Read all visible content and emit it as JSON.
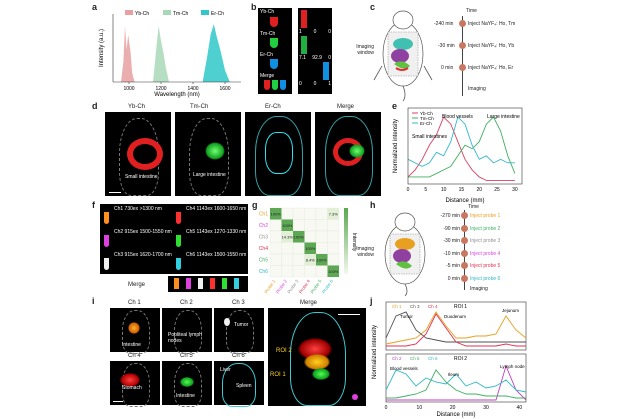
{
  "panels": {
    "a": {
      "label": "a",
      "chart_data": {
        "type": "area",
        "series": [
          {
            "name": "Yb-Ch",
            "color": "#e8a0a0",
            "x": [
              950,
              965,
              975,
              985,
              995,
              1010,
              1020,
              1035
            ],
            "y": [
              0.0,
              0.35,
              0.95,
              0.55,
              0.8,
              0.5,
              0.15,
              0.0
            ]
          },
          {
            "name": "Tm-Ch",
            "color": "#a8d8b8",
            "x": [
              1150,
              1170,
              1185,
              1200,
              1215,
              1230,
              1250
            ],
            "y": [
              0.0,
              0.55,
              0.95,
              0.7,
              0.5,
              0.25,
              0.0
            ]
          },
          {
            "name": "Er-Ch",
            "color": "#30c8c8",
            "x": [
              1460,
              1490,
              1510,
              1530,
              1550,
              1570,
              1600,
              1630
            ],
            "y": [
              0.0,
              0.45,
              0.8,
              0.98,
              0.75,
              0.55,
              0.2,
              0.0
            ]
          }
        ],
        "xlabel": "Wavelength (nm)",
        "ylabel": "Intensity (a.u.)",
        "xticks": [
          "1000",
          "1200",
          "1400",
          "1600"
        ],
        "xlim": [
          900,
          1700
        ],
        "ylim": [
          0,
          1.05
        ]
      }
    },
    "b": {
      "label": "b",
      "left_labels": [
        "Yb-Ch",
        "Tm-Ch",
        "Er-Ch",
        "Merge"
      ],
      "right_values": [
        [
          "1",
          "0",
          "0"
        ],
        [
          "7.1",
          "92.9",
          "0"
        ],
        [
          "0",
          "0",
          "1"
        ]
      ]
    },
    "c": {
      "label": "c",
      "window": "Imaging window",
      "time_header": "Time",
      "steps": [
        {
          "time": "-240 min",
          "text": "Inject NaYF₄: Ho, Tm"
        },
        {
          "time": "-30 min",
          "text": "Inject NaYF₄: Ho, Yb"
        },
        {
          "time": "0 min",
          "text": "Inject NaYF₄: Ho, Er"
        }
      ],
      "end": "Imaging"
    },
    "d": {
      "label": "d",
      "titles": [
        "Yb-Ch",
        "Tm-Ch",
        "Er-Ch",
        "Merge"
      ],
      "captions": [
        "Small intestine",
        "Large intestine"
      ]
    },
    "e": {
      "label": "e",
      "chart_data": {
        "type": "line",
        "xlabel": "Distance (mm)",
        "ylabel": "Normalized intensity",
        "xticks": [
          "0",
          "5",
          "10",
          "15",
          "20",
          "25",
          "30"
        ],
        "xlim": [
          0,
          32
        ],
        "ylim": [
          0,
          1.05
        ],
        "series": [
          {
            "name": "Yb-Ch",
            "color": "#d84060",
            "x": [
              0,
              2,
              4,
              6,
              8,
              10,
              12,
              14,
              16,
              18,
              20,
              22,
              24,
              26,
              28,
              30
            ],
            "y": [
              0.1,
              0.2,
              0.35,
              0.55,
              0.7,
              0.95,
              0.85,
              0.6,
              0.35,
              0.2,
              0.1,
              0.05,
              0.05,
              0.05,
              0.05,
              0.05
            ]
          },
          {
            "name": "Tm-Ch",
            "color": "#40b060",
            "x": [
              0,
              2,
              4,
              6,
              8,
              10,
              12,
              14,
              16,
              18,
              20,
              22,
              24,
              26,
              28,
              30
            ],
            "y": [
              0.1,
              0.1,
              0.1,
              0.1,
              0.15,
              0.2,
              0.25,
              0.4,
              0.55,
              0.5,
              0.6,
              0.85,
              0.95,
              0.75,
              0.4,
              0.15
            ]
          },
          {
            "name": "Er-Ch",
            "color": "#30b8c8",
            "x": [
              0,
              2,
              4,
              6,
              8,
              10,
              12,
              14,
              16,
              18,
              20,
              22,
              24,
              26,
              28,
              30
            ],
            "y": [
              0.35,
              0.3,
              0.25,
              0.3,
              0.45,
              0.4,
              0.6,
              0.95,
              0.85,
              0.55,
              0.35,
              0.4,
              0.3,
              0.35,
              0.3,
              0.3
            ]
          }
        ],
        "annotations": [
          "Blood vessels",
          "Large intestine",
          "Small intestines"
        ]
      }
    },
    "f": {
      "label": "f",
      "rows": [
        [
          "Ch1 730ex >1300 nm",
          "Ch4 1143ex 1600-1650 nm"
        ],
        [
          "Ch2 915ex 1500-1550 nm",
          "Ch5 1143ex 1270-1330 nm"
        ],
        [
          "Ch3 915ex 1620-1700 nm",
          "Ch6 1143ex 1500-1550 nm"
        ]
      ],
      "merge": "Merge"
    },
    "g": {
      "label": "g",
      "rows": [
        "Ch1",
        "Ch2",
        "Ch3",
        "Ch4",
        "Ch5",
        "Ch6"
      ],
      "cols": [
        "Probe 1",
        "Probe 2",
        "Probe 3",
        "Probe 4",
        "Probe 5",
        "Probe 6"
      ],
      "cells": [
        {
          "r": 0,
          "c": 0,
          "v": "100%"
        },
        {
          "r": 0,
          "c": 5,
          "v": "7.3%"
        },
        {
          "r": 1,
          "c": 1,
          "v": "100%"
        },
        {
          "r": 2,
          "c": 1,
          "v": "14.3%"
        },
        {
          "r": 2,
          "c": 2,
          "v": "100%"
        },
        {
          "r": 3,
          "c": 3,
          "v": "100%"
        },
        {
          "r": 4,
          "c": 3,
          "v": "8.4%"
        },
        {
          "r": 4,
          "c": 4,
          "v": "100%"
        },
        {
          "r": 5,
          "c": 5,
          "v": "100%"
        }
      ],
      "colorbar": "Intensity"
    },
    "h": {
      "label": "h",
      "window": "Imaging window",
      "time_header": "Time",
      "steps": [
        {
          "time": "-270 min",
          "text": "Inject probe 1"
        },
        {
          "time": "-90 min",
          "text": "Inject probe 2"
        },
        {
          "time": "-30 min",
          "text": "Inject probe 3"
        },
        {
          "time": "-10 min",
          "text": "Inject probe 4"
        },
        {
          "time": "-5 min",
          "text": "Inject probe 5"
        },
        {
          "time": "0 min",
          "text": "Inject probe 6"
        }
      ],
      "end": "Imaging"
    },
    "i": {
      "label": "i",
      "titles": [
        "Ch 1",
        "Ch 2",
        "Ch 3",
        "Ch 4",
        "Ch 5",
        "Ch 6",
        "Merge"
      ],
      "captions": [
        "Intestine",
        "Popliteal lymph nodes",
        "Tumor",
        "Stomach",
        "Intestine",
        "Liver",
        "Spleen"
      ],
      "roi": [
        "ROI 1",
        "ROI 2"
      ]
    },
    "j": {
      "label": "j",
      "ylabel": "Normalized intensity",
      "xlabel": "Distance (mm)",
      "xticks": [
        "0",
        "10",
        "20",
        "30",
        "40"
      ],
      "top": {
        "legend": [
          "Ch 1",
          "Ch 3",
          "Ch 4"
        ],
        "roi": "ROI 1",
        "annotations": [
          "Tumor",
          "Duodenum",
          "Jejunum"
        ],
        "chart_data": {
          "type": "line",
          "xlim": [
            0,
            42
          ],
          "ylim": [
            0,
            1.05
          ],
          "series": [
            {
              "name": "Ch 1",
              "color": "#e8a020",
              "x": [
                0,
                3,
                6,
                9,
                12,
                15,
                18,
                21,
                24,
                27,
                30,
                33,
                36,
                39,
                42
              ],
              "y": [
                0.15,
                0.2,
                0.25,
                0.3,
                0.5,
                0.95,
                0.6,
                0.3,
                0.3,
                0.35,
                0.35,
                0.4,
                0.85,
                0.5,
                0.3
              ]
            },
            {
              "name": "Ch 3",
              "color": "#505050",
              "x": [
                0,
                3,
                6,
                9,
                12,
                15,
                18,
                21,
                24,
                27,
                30,
                33,
                36,
                39,
                42
              ],
              "y": [
                0.3,
                0.85,
                0.95,
                0.5,
                0.3,
                0.25,
                0.2,
                0.2,
                0.2,
                0.2,
                0.2,
                0.2,
                0.2,
                0.2,
                0.2
              ]
            },
            {
              "name": "Ch 4",
              "color": "#e03050",
              "x": [
                0,
                3,
                6,
                9,
                12,
                15,
                18,
                21,
                24,
                27,
                30,
                33,
                36,
                39,
                42
              ],
              "y": [
                0.1,
                0.1,
                0.1,
                0.15,
                0.4,
                0.9,
                0.55,
                0.2,
                0.1,
                0.1,
                0.1,
                0.1,
                0.15,
                0.1,
                0.1
              ]
            }
          ]
        }
      },
      "bottom": {
        "legend": [
          "Ch 2",
          "Ch 5",
          "Ch 6"
        ],
        "roi": "ROI 2",
        "annotations": [
          "Blood vessels",
          "Ileum",
          "Lymph node"
        ],
        "chart_data": {
          "type": "line",
          "xlim": [
            0,
            42
          ],
          "ylim": [
            0,
            1.05
          ],
          "series": [
            {
              "name": "Ch 2",
              "color": "#c040c0",
              "x": [
                0,
                3,
                6,
                9,
                12,
                15,
                18,
                21,
                24,
                27,
                30,
                33,
                36,
                39,
                42
              ],
              "y": [
                0.05,
                0.05,
                0.05,
                0.05,
                0.05,
                0.05,
                0.05,
                0.05,
                0.05,
                0.05,
                0.05,
                0.05,
                0.9,
                0.3,
                0.05
              ]
            },
            {
              "name": "Ch 5",
              "color": "#40b060",
              "x": [
                0,
                3,
                6,
                9,
                12,
                15,
                18,
                21,
                24,
                27,
                30,
                33,
                36,
                39,
                42
              ],
              "y": [
                0.1,
                0.1,
                0.15,
                0.2,
                0.3,
                0.8,
                0.5,
                0.3,
                0.2,
                0.2,
                0.15,
                0.15,
                0.15,
                0.1,
                0.1
              ]
            },
            {
              "name": "Ch 6",
              "color": "#30b8c8",
              "x": [
                0,
                3,
                6,
                9,
                12,
                15,
                18,
                21,
                24,
                27,
                30,
                33,
                36,
                39,
                42
              ],
              "y": [
                0.3,
                0.8,
                0.7,
                0.4,
                0.6,
                0.5,
                0.45,
                0.7,
                0.4,
                0.5,
                0.35,
                0.4,
                0.55,
                0.3,
                0.25
              ]
            }
          ]
        }
      }
    }
  }
}
